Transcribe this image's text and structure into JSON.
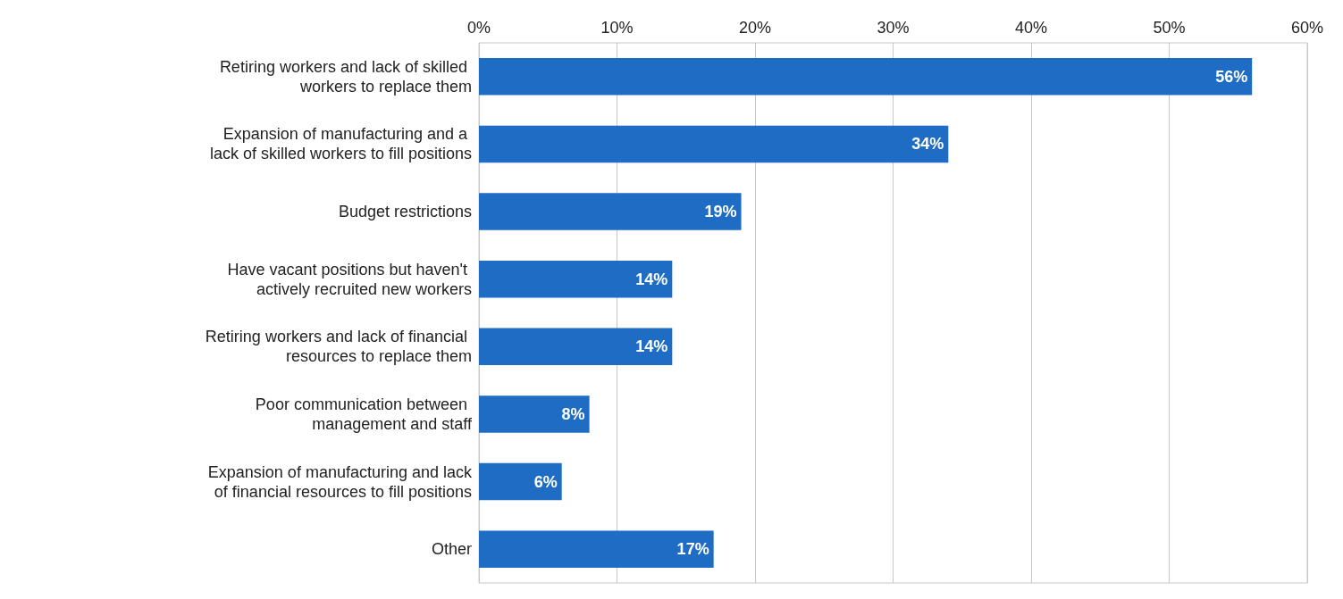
{
  "chart_data": {
    "type": "bar",
    "orientation": "horizontal",
    "categories": [
      "Retiring workers and lack of skilled workers to replace them",
      "Expansion of manufacturing and a lack of skilled workers to fill positions",
      "Budget restrictions",
      "Have vacant positions but haven't actively recruited new workers",
      "Retiring workers and lack of financial resources to replace them",
      "Poor communication between management and staff",
      "Expansion of manufacturing and lack of financial resources to fill positions",
      "Other"
    ],
    "values": [
      56,
      34,
      19,
      14,
      14,
      8,
      6,
      17
    ],
    "value_labels": [
      "56%",
      "34%",
      "19%",
      "14%",
      "14%",
      "8%",
      "6%",
      "17%"
    ],
    "color": "#1f6cc4",
    "xlim": [
      0,
      60
    ],
    "xticks": [
      {
        "value": 0,
        "label": "0%"
      },
      {
        "value": 10,
        "label": "10%"
      },
      {
        "value": 20,
        "label": "20%"
      },
      {
        "value": 30,
        "label": "30%"
      },
      {
        "value": 40,
        "label": "40%"
      },
      {
        "value": 50,
        "label": "50%"
      },
      {
        "value": 60,
        "label": "60%"
      }
    ],
    "grid": "x"
  }
}
